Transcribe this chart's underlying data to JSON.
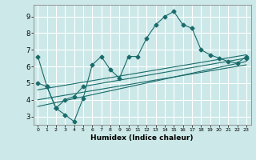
{
  "title": "",
  "xlabel": "Humidex (Indice chaleur)",
  "bg_color": "#cce8e8",
  "grid_color": "#ffffff",
  "line_color": "#1a6b6b",
  "marker_size": 2.5,
  "xlim": [
    -0.5,
    23.5
  ],
  "ylim": [
    2.5,
    9.7
  ],
  "yticks": [
    3,
    4,
    5,
    6,
    7,
    8,
    9
  ],
  "xticks": [
    0,
    1,
    2,
    3,
    4,
    5,
    6,
    7,
    8,
    9,
    10,
    11,
    12,
    13,
    14,
    15,
    16,
    17,
    18,
    19,
    20,
    21,
    22,
    23
  ],
  "series1_x": [
    0,
    1,
    2,
    3,
    4,
    5,
    6,
    7,
    8,
    9,
    10,
    11,
    12,
    13,
    14,
    15,
    16,
    17,
    18,
    19,
    20,
    21,
    22,
    23
  ],
  "series1_y": [
    6.6,
    4.8,
    3.5,
    3.1,
    2.7,
    4.1,
    6.1,
    6.6,
    5.8,
    5.3,
    6.6,
    6.6,
    7.7,
    8.5,
    9.0,
    9.3,
    8.5,
    8.3,
    7.0,
    6.7,
    6.5,
    6.3,
    6.2,
    6.6
  ],
  "series2_x": [
    0,
    1,
    2,
    3,
    4,
    5,
    23
  ],
  "series2_y": [
    5.0,
    4.8,
    3.5,
    4.0,
    4.2,
    4.8,
    6.5
  ],
  "line2_x": [
    0,
    23
  ],
  "line2_y": [
    3.6,
    6.3
  ],
  "line3_x": [
    0,
    23
  ],
  "line3_y": [
    4.0,
    6.1
  ],
  "line4_x": [
    0,
    23
  ],
  "line4_y": [
    4.6,
    6.7
  ]
}
